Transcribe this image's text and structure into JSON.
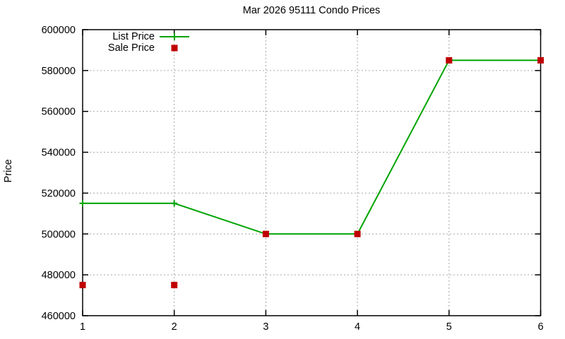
{
  "window": {
    "background": "#ffffff"
  },
  "chart_data": {
    "type": "line",
    "title": "Mar 2026 95111 Condo Prices",
    "xlabel": "",
    "ylabel": "Price",
    "x": [
      1,
      2,
      3,
      4,
      5,
      6
    ],
    "xticks": [
      "1",
      "2",
      "3",
      "4",
      "5",
      "6"
    ],
    "ytick_values": [
      460000,
      480000,
      500000,
      520000,
      540000,
      560000,
      580000,
      600000
    ],
    "yticks": [
      "460000",
      "480000",
      "500000",
      "520000",
      "540000",
      "560000",
      "580000",
      "600000"
    ],
    "xlim": [
      1,
      6
    ],
    "ylim": [
      460000,
      600000
    ],
    "grid": true,
    "grid_color": "#a6a6a6",
    "axis_color": "#000000",
    "legend_position": "top-left-inside",
    "series": [
      {
        "name": "List Price",
        "style": "line-with-plus-markers",
        "color": "#00a400",
        "values": [
          515000,
          515000,
          500000,
          500000,
          585000,
          585000
        ]
      },
      {
        "name": "Sale Price",
        "style": "square-markers",
        "color": "#c00000",
        "values": [
          475000,
          475000,
          500000,
          500000,
          585000,
          585000
        ]
      }
    ]
  }
}
